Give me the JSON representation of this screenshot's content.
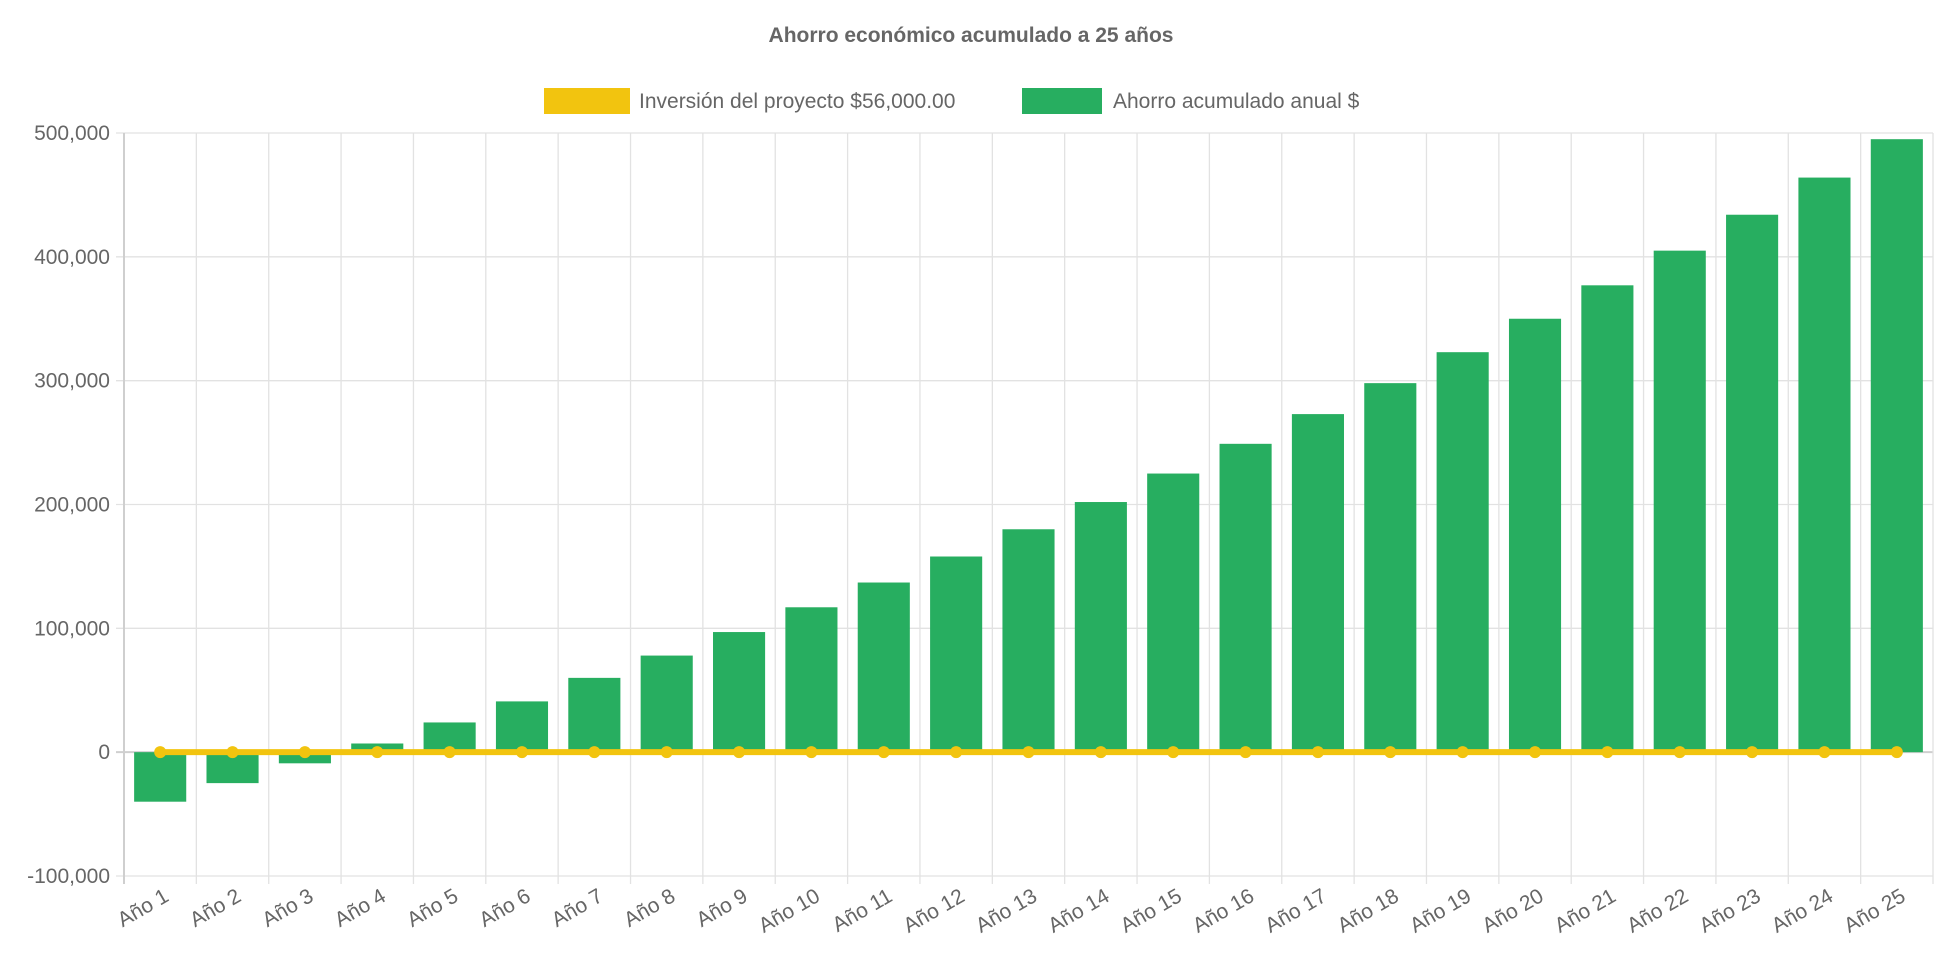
{
  "chart_data": {
    "type": "bar",
    "title": "Ahorro económico acumulado a 25 años",
    "categories": [
      "Año 1",
      "Año 2",
      "Año 3",
      "Año 4",
      "Año 5",
      "Año 6",
      "Año 7",
      "Año 8",
      "Año 9",
      "Año 10",
      "Año 11",
      "Año 12",
      "Año 13",
      "Año 14",
      "Año 15",
      "Año 16",
      "Año 17",
      "Año 18",
      "Año 19",
      "Año 20",
      "Año 21",
      "Año 22",
      "Año 23",
      "Año 24",
      "Año 25"
    ],
    "series": [
      {
        "name": "Inversión del proyecto $56,000.00",
        "type": "line",
        "color": "#f2c40f",
        "values": [
          0,
          0,
          0,
          0,
          0,
          0,
          0,
          0,
          0,
          0,
          0,
          0,
          0,
          0,
          0,
          0,
          0,
          0,
          0,
          0,
          0,
          0,
          0,
          0,
          0
        ]
      },
      {
        "name": "Ahorro acumulado anual $",
        "type": "bar",
        "color": "#27ae60",
        "values": [
          -40000,
          -25000,
          -9000,
          7000,
          24000,
          41000,
          60000,
          78000,
          97000,
          117000,
          137000,
          158000,
          180000,
          202000,
          225000,
          249000,
          273000,
          298000,
          323000,
          350000,
          377000,
          405000,
          434000,
          464000,
          495000
        ]
      }
    ],
    "yticks": [
      "-100,000",
      "0",
      "100,000",
      "200,000",
      "300,000",
      "400,000",
      "500,000"
    ],
    "ylim": [
      -100000,
      500000
    ],
    "xlabel": "",
    "ylabel": "",
    "grid": true,
    "legend": "top-center"
  }
}
